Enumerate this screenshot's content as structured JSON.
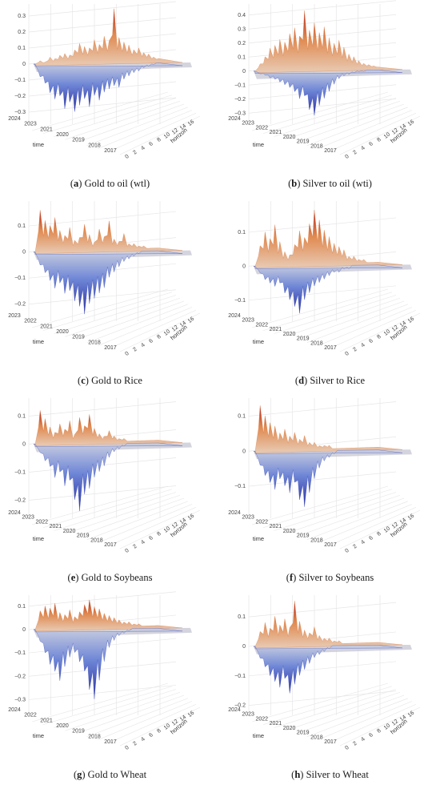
{
  "chart_data": [
    {
      "type": "surface",
      "letter": "a",
      "caption": "Gold to oil (wtl)",
      "xlabel": "horizon",
      "ylabel": "time",
      "zticks": [
        "0.3",
        "0.2",
        "0.1",
        "0",
        "−0.1",
        "−0.2",
        "−0.3"
      ],
      "zmin": -0.35,
      "zmax": 0.35,
      "timeticks": [
        "2024",
        "2023",
        "2021",
        "2020",
        "2019",
        "2018",
        "2017"
      ],
      "horizonticks": [
        "0",
        "2",
        "4",
        "6",
        "8",
        "10",
        "12",
        "14",
        "16"
      ],
      "profile": [
        0.0,
        0.02,
        0.01,
        0.04,
        0.03,
        0.05,
        0.06,
        0.05,
        0.08,
        0.12,
        0.1,
        0.09,
        0.14,
        0.11,
        0.16,
        0.13,
        0.33,
        0.15,
        0.12,
        0.1,
        0.07,
        0.08,
        0.05,
        0.04,
        0.02,
        0.01
      ],
      "neg": [
        0.0,
        -0.08,
        -0.12,
        -0.18,
        -0.22,
        -0.2,
        -0.28,
        -0.24,
        -0.3,
        -0.26,
        -0.22,
        -0.27,
        -0.2,
        -0.23,
        -0.18,
        -0.16,
        -0.14,
        -0.15,
        -0.1,
        -0.08,
        -0.06,
        -0.05,
        -0.03,
        -0.02,
        -0.01,
        0.0
      ]
    },
    {
      "type": "surface",
      "letter": "b",
      "caption": "Silver to oil (wti)",
      "xlabel": "horizon",
      "ylabel": "time",
      "zticks": [
        "0.4",
        "0.3",
        "0.2",
        "0.1",
        "0",
        "−0.1",
        "−0.2",
        "−0.3"
      ],
      "zmin": -0.35,
      "zmax": 0.45,
      "timeticks": [
        "2024",
        "2023",
        "2022",
        "2021",
        "2020",
        "2019",
        "2018",
        "2017"
      ],
      "horizonticks": [
        "0",
        "2",
        "4",
        "6",
        "8",
        "10",
        "12",
        "14",
        "16"
      ],
      "profile": [
        0.0,
        0.05,
        0.1,
        0.16,
        0.18,
        0.22,
        0.2,
        0.26,
        0.3,
        0.24,
        0.42,
        0.28,
        0.33,
        0.26,
        0.3,
        0.22,
        0.18,
        0.2,
        0.15,
        0.1,
        0.08,
        0.05,
        0.03,
        0.02,
        0.01,
        0.0
      ],
      "neg": [
        0.0,
        -0.02,
        -0.03,
        -0.05,
        -0.06,
        -0.08,
        -0.1,
        -0.12,
        -0.15,
        -0.2,
        -0.18,
        -0.28,
        -0.32,
        -0.25,
        -0.2,
        -0.15,
        -0.1,
        -0.06,
        -0.04,
        -0.03,
        -0.02,
        -0.01,
        -0.01,
        0.0,
        0.0,
        0.0
      ]
    },
    {
      "type": "surface",
      "letter": "c",
      "caption": "Gold to Rice",
      "xlabel": "horizon",
      "ylabel": "time",
      "zticks": [
        "0.1",
        "0",
        "−0.1",
        "−0.2"
      ],
      "zmin": -0.25,
      "zmax": 0.18,
      "timeticks": [
        "2023",
        "2022",
        "2021",
        "2020",
        "2019",
        "2018",
        "2017"
      ],
      "horizonticks": [
        "0",
        "2",
        "4",
        "6",
        "8",
        "10",
        "12",
        "14",
        "16"
      ],
      "profile": [
        0.0,
        0.16,
        0.12,
        0.1,
        0.13,
        0.08,
        0.06,
        0.09,
        0.04,
        0.05,
        0.1,
        0.06,
        0.03,
        0.08,
        0.05,
        0.11,
        0.04,
        0.03,
        0.06,
        0.02,
        0.02,
        0.01,
        0.01,
        0.0,
        0.0,
        0.0
      ],
      "neg": [
        0.0,
        -0.05,
        -0.08,
        -0.11,
        -0.14,
        -0.12,
        -0.16,
        -0.15,
        -0.19,
        -0.21,
        -0.24,
        -0.2,
        -0.18,
        -0.16,
        -0.14,
        -0.1,
        -0.08,
        -0.06,
        -0.04,
        -0.03,
        -0.02,
        -0.01,
        0.0,
        0.0,
        0.0,
        0.0
      ]
    },
    {
      "type": "surface",
      "letter": "d",
      "caption": "Silver to Rice",
      "xlabel": "horizon",
      "ylabel": "time",
      "zticks": [
        "0.1",
        "0",
        "−0.1"
      ],
      "zmin": -0.15,
      "zmax": 0.18,
      "timeticks": [
        "2024",
        "2023",
        "2022",
        "2021",
        "2020",
        "2019",
        "2018",
        "2017"
      ],
      "horizonticks": [
        "0",
        "2",
        "4",
        "6",
        "8",
        "10",
        "12",
        "14",
        "16"
      ],
      "profile": [
        0.0,
        0.06,
        0.1,
        0.08,
        0.12,
        0.07,
        0.04,
        0.03,
        0.06,
        0.1,
        0.08,
        0.12,
        0.16,
        0.13,
        0.1,
        0.08,
        0.06,
        0.05,
        0.04,
        0.02,
        0.02,
        0.01,
        0.01,
        0.0,
        0.0,
        0.0
      ],
      "neg": [
        0.0,
        -0.02,
        -0.04,
        -0.05,
        -0.06,
        -0.05,
        -0.08,
        -0.1,
        -0.12,
        -0.14,
        -0.1,
        -0.08,
        -0.06,
        -0.05,
        -0.04,
        -0.03,
        -0.02,
        -0.02,
        -0.01,
        -0.01,
        0.0,
        0.0,
        0.0,
        0.0,
        0.0,
        0.0
      ]
    },
    {
      "type": "surface",
      "letter": "e",
      "caption": "Gold to Soybeans",
      "xlabel": "horizon",
      "ylabel": "time",
      "zticks": [
        "0.1",
        "0",
        "−0.1",
        "−0.2"
      ],
      "zmin": -0.25,
      "zmax": 0.15,
      "timeticks": [
        "2024",
        "2023",
        "2022",
        "2021",
        "2020",
        "2019",
        "2018",
        "2017"
      ],
      "horizonticks": [
        "0",
        "2",
        "4",
        "6",
        "8",
        "10",
        "12",
        "14",
        "16"
      ],
      "profile": [
        0.0,
        0.12,
        0.09,
        0.06,
        0.04,
        0.07,
        0.05,
        0.08,
        0.03,
        0.09,
        0.06,
        0.1,
        0.05,
        0.03,
        0.02,
        0.04,
        0.02,
        0.01,
        0.01,
        0.0,
        0.0,
        0.0,
        0.0,
        0.0,
        0.0,
        0.0
      ],
      "neg": [
        0.0,
        -0.03,
        -0.06,
        -0.08,
        -0.12,
        -0.1,
        -0.15,
        -0.13,
        -0.2,
        -0.24,
        -0.18,
        -0.16,
        -0.12,
        -0.1,
        -0.08,
        -0.05,
        -0.03,
        -0.02,
        -0.01,
        0.0,
        0.0,
        0.0,
        0.0,
        0.0,
        0.0,
        0.0
      ]
    },
    {
      "type": "surface",
      "letter": "f",
      "caption": "Silver to Soybeans",
      "xlabel": "horizon",
      "ylabel": "time",
      "zticks": [
        "0.1",
        "0",
        "−0.1"
      ],
      "zmin": -0.18,
      "zmax": 0.14,
      "timeticks": [
        "2024",
        "2023",
        "2022",
        "2021",
        "2020",
        "2019",
        "2018",
        "2017"
      ],
      "horizonticks": [
        "0",
        "2",
        "4",
        "6",
        "8",
        "10",
        "12",
        "14",
        "16"
      ],
      "profile": [
        0.0,
        0.13,
        0.1,
        0.08,
        0.07,
        0.05,
        0.06,
        0.04,
        0.05,
        0.03,
        0.04,
        0.02,
        0.02,
        0.01,
        0.01,
        0.01,
        0.0,
        0.0,
        0.0,
        0.0,
        0.0,
        0.0,
        0.0,
        0.0,
        0.0,
        0.0
      ],
      "neg": [
        0.0,
        -0.04,
        -0.07,
        -0.09,
        -0.11,
        -0.08,
        -0.1,
        -0.12,
        -0.09,
        -0.14,
        -0.16,
        -0.12,
        -0.08,
        -0.05,
        -0.03,
        -0.02,
        -0.01,
        0.0,
        0.0,
        0.0,
        0.0,
        0.0,
        0.0,
        0.0,
        0.0,
        0.0
      ]
    },
    {
      "type": "surface",
      "letter": "g",
      "caption": "Gold to Wheat",
      "xlabel": "horizon",
      "ylabel": "time",
      "zticks": [
        "0.1",
        "0",
        "−0.1",
        "−0.2",
        "−0.3"
      ],
      "zmin": -0.35,
      "zmax": 0.13,
      "timeticks": [
        "2024",
        "2022",
        "2021",
        "2020",
        "2019",
        "2018",
        "2017"
      ],
      "horizonticks": [
        "0",
        "2",
        "4",
        "6",
        "8",
        "10",
        "12",
        "14",
        "16"
      ],
      "profile": [
        0.0,
        0.08,
        0.1,
        0.09,
        0.11,
        0.07,
        0.06,
        0.08,
        0.05,
        0.07,
        0.1,
        0.12,
        0.09,
        0.08,
        0.06,
        0.05,
        0.04,
        0.03,
        0.02,
        0.02,
        0.01,
        0.01,
        0.0,
        0.0,
        0.0,
        0.0
      ],
      "neg": [
        0.0,
        -0.05,
        -0.1,
        -0.15,
        -0.18,
        -0.22,
        -0.16,
        -0.12,
        -0.1,
        -0.14,
        -0.18,
        -0.26,
        -0.3,
        -0.22,
        -0.14,
        -0.08,
        -0.05,
        -0.03,
        -0.02,
        -0.01,
        0.0,
        0.0,
        0.0,
        0.0,
        0.0,
        0.0
      ]
    },
    {
      "type": "surface",
      "letter": "h",
      "caption": "Silver to Wheat",
      "xlabel": "horizon",
      "ylabel": "time",
      "zticks": [
        "0.1",
        "0",
        "−0.1",
        "−0.2"
      ],
      "zmin": -0.22,
      "zmax": 0.16,
      "timeticks": [
        "2024",
        "2023",
        "2022",
        "2021",
        "2020",
        "2019",
        "2018",
        "2017"
      ],
      "horizonticks": [
        "0",
        "2",
        "4",
        "6",
        "8",
        "10",
        "12",
        "14",
        "16"
      ],
      "profile": [
        0.0,
        0.05,
        0.08,
        0.06,
        0.1,
        0.07,
        0.09,
        0.06,
        0.15,
        0.08,
        0.05,
        0.04,
        0.06,
        0.03,
        0.02,
        0.02,
        0.01,
        0.01,
        0.0,
        0.0,
        0.0,
        0.0,
        0.0,
        0.0,
        0.0,
        0.0
      ],
      "neg": [
        0.0,
        -0.04,
        -0.07,
        -0.1,
        -0.12,
        -0.14,
        -0.11,
        -0.16,
        -0.13,
        -0.1,
        -0.08,
        -0.06,
        -0.04,
        -0.03,
        -0.02,
        -0.01,
        0.0,
        0.0,
        0.0,
        0.0,
        0.0,
        0.0,
        0.0,
        0.0,
        0.0,
        0.0
      ]
    }
  ]
}
